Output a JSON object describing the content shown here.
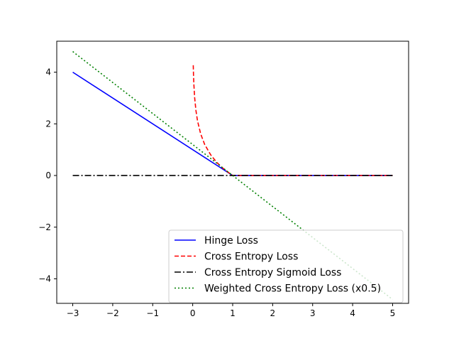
{
  "chart_data": {
    "type": "line",
    "title": "",
    "xlabel": "",
    "ylabel": "",
    "xlim": [
      -3.4,
      5.4
    ],
    "ylim": [
      -4.95,
      5.2
    ],
    "xticks": [
      -3,
      -2,
      -1,
      0,
      1,
      2,
      3,
      4,
      5
    ],
    "yticks": [
      -4,
      -2,
      0,
      2,
      4
    ],
    "grid": false,
    "legend_position": "lower-right",
    "series": [
      {
        "name": "Hinge Loss",
        "color": "#0000ff",
        "dash": "solid",
        "x": [
          -3,
          1,
          5
        ],
        "y": [
          4,
          0,
          0
        ]
      },
      {
        "name": "Cross Entropy Loss",
        "color": "#ff0000",
        "dash": "dashed",
        "x": [
          0.014,
          0.02,
          0.03,
          0.05,
          0.08,
          0.12,
          0.2,
          0.3,
          0.45,
          0.6,
          0.75,
          0.9,
          1.0,
          1.2,
          2,
          3,
          4,
          5
        ],
        "y": [
          4.27,
          3.91,
          3.51,
          3.0,
          2.53,
          2.12,
          1.61,
          1.2,
          0.8,
          0.51,
          0.29,
          0.11,
          0,
          0,
          0,
          0,
          0,
          0
        ]
      },
      {
        "name": "Cross Entropy Sigmoid Loss",
        "color": "#000000",
        "dash": "dashdot",
        "x": [
          -3,
          5
        ],
        "y": [
          0,
          0
        ]
      },
      {
        "name": "Weighted Cross Entropy Loss (x0.5)",
        "color": "#008000",
        "dash": "dotted",
        "x": [
          -3,
          5
        ],
        "y": [
          4.8,
          -4.8
        ]
      }
    ]
  }
}
